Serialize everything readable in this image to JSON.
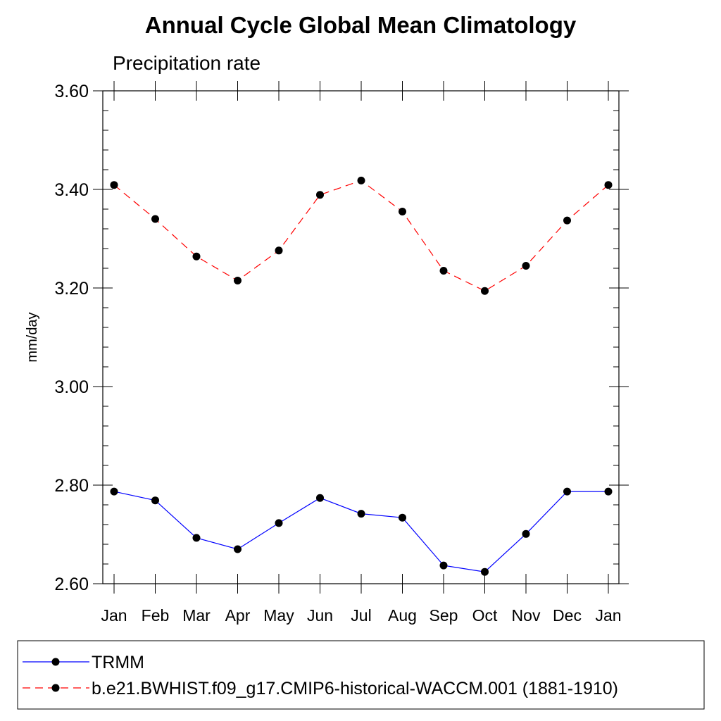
{
  "chart_data": {
    "type": "line",
    "title": "Annual Cycle Global Mean Climatology",
    "subtitle": "Precipitation rate",
    "xlabel": "",
    "ylabel": "mm/day",
    "categories": [
      "Jan",
      "Feb",
      "Mar",
      "Apr",
      "May",
      "Jun",
      "Jul",
      "Aug",
      "Sep",
      "Oct",
      "Nov",
      "Dec",
      "Jan"
    ],
    "ylim": [
      2.6,
      3.6
    ],
    "yticks": [
      2.6,
      2.8,
      3.0,
      3.2,
      3.4,
      3.6
    ],
    "ytick_labels": [
      "2.60",
      "2.80",
      "3.00",
      "3.20",
      "3.40",
      "3.60"
    ],
    "legend_position": "bottom",
    "series": [
      {
        "name": "TRMM",
        "color": "#0000ff",
        "line_style": "solid",
        "marker": "filled-circle",
        "values": [
          2.787,
          2.769,
          2.693,
          2.67,
          2.723,
          2.774,
          2.742,
          2.734,
          2.637,
          2.624,
          2.701,
          2.787,
          2.787
        ]
      },
      {
        "name": "b.e21.BWHIST.f09_g17.CMIP6-historical-WACCM.001 (1881-1910)",
        "color": "#ff0000",
        "line_style": "dashed",
        "marker": "filled-circle",
        "values": [
          3.409,
          3.34,
          3.264,
          3.215,
          3.276,
          3.389,
          3.418,
          3.355,
          3.235,
          3.194,
          3.245,
          3.337,
          3.409
        ]
      }
    ]
  }
}
